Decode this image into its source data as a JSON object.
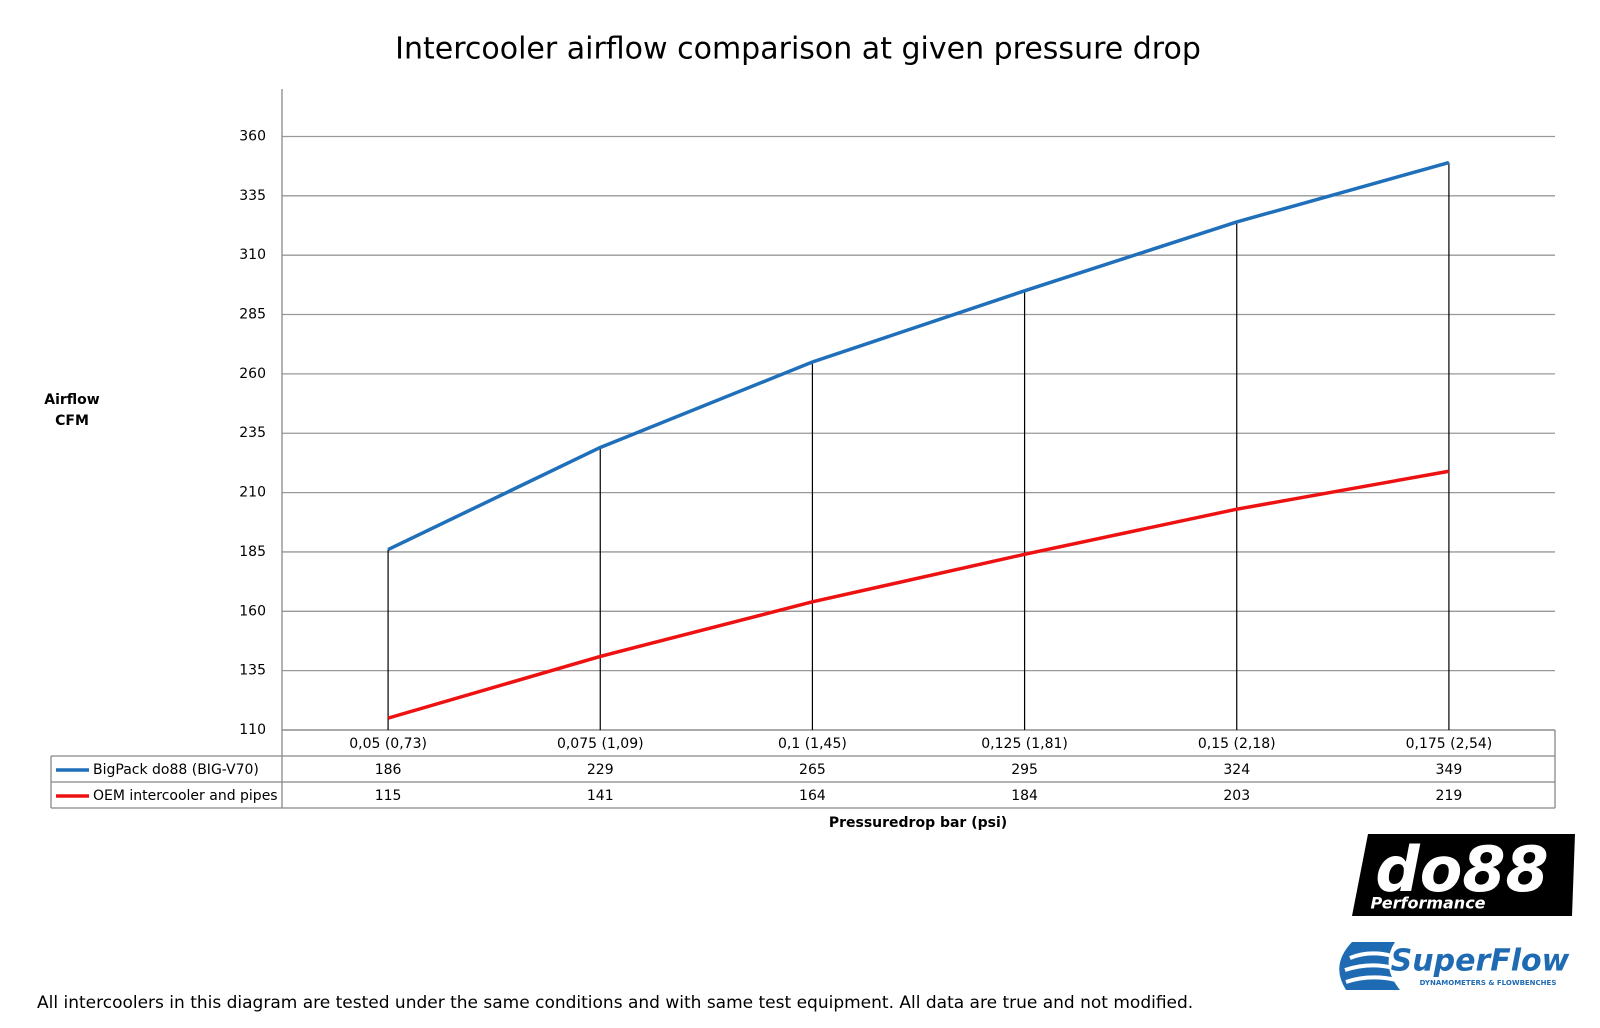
{
  "chart_data": {
    "type": "line",
    "title": "Intercooler airflow comparison at given pressure drop",
    "y_label": [
      "Airflow",
      "CFM"
    ],
    "x_label": "Pressuredrop bar (psi)",
    "categories": [
      "0,05 (0,73)",
      "0,075 (1,09)",
      "0,1 (1,45)",
      "0,125 (1,81)",
      "0,15 (2,18)",
      "0,175 (2,54)"
    ],
    "series": [
      {
        "name": "BigPack do88 (BIG-V70)",
        "color": "#1f6fba",
        "values": [
          186,
          229,
          265,
          295,
          324,
          349
        ]
      },
      {
        "name": "OEM intercooler and pipes",
        "color": "#ee1111",
        "values": [
          115,
          141,
          164,
          184,
          203,
          219
        ]
      }
    ],
    "ylim": [
      110,
      380
    ],
    "yticks": [
      110,
      135,
      160,
      185,
      210,
      235,
      260,
      285,
      310,
      335,
      360
    ],
    "grid": true
  },
  "footnote": "All intercoolers in this diagram are tested under the same conditions and with same test equipment. All data are true and not modified.",
  "logos": {
    "do88": "do88",
    "do88_sub": "Performance",
    "superflow": "SuperFlow",
    "superflow_sub": "DYNAMOMETERS & FLOWBENCHES"
  }
}
